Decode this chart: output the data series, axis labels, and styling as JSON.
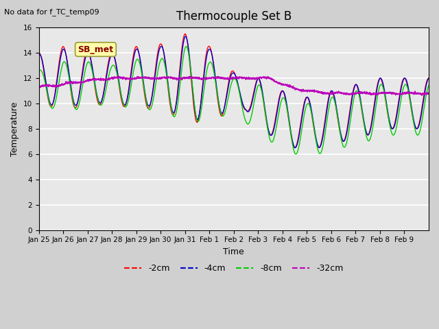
{
  "title": "Thermocouple Set B",
  "no_data_text": "No data for f_TC_temp09",
  "xlabel": "Time",
  "ylabel": "Temperature",
  "ylim": [
    0,
    16
  ],
  "yticks": [
    0,
    2,
    4,
    6,
    8,
    10,
    12,
    14,
    16
  ],
  "legend_labels": [
    "-2cm",
    "-4cm",
    "-8cm",
    "-32cm"
  ],
  "legend_colors": [
    "#ff0000",
    "#0000cc",
    "#00cc00",
    "#bb00bb"
  ],
  "sb_met_label": "SB_met",
  "x_tick_labels": [
    "Jan 25",
    "Jan 26",
    "Jan 27",
    "Jan 28",
    "Jan 29",
    "Jan 30",
    "Jan 31",
    "Feb 1",
    "Feb 2",
    "Feb 3",
    "Feb 4",
    "Feb 5",
    "Feb 6",
    "Feb 7",
    "Feb 8",
    "Feb 9"
  ]
}
